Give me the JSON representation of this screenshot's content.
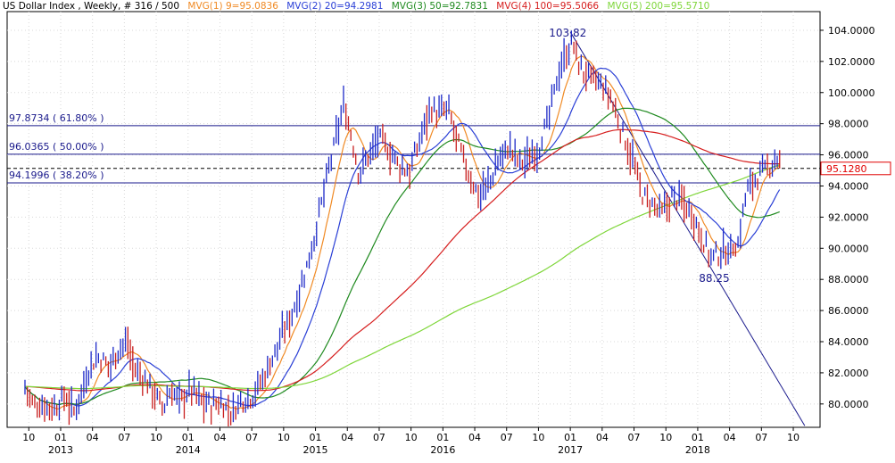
{
  "header": {
    "title": "US Dollar Index , Weekly, # 316 / 500",
    "mas": [
      {
        "label": "MVG(1) 9=95.0836",
        "color": "#f08a24"
      },
      {
        "label": "MVG(2) 20=94.2981",
        "color": "#2a3fd6"
      },
      {
        "label": "MVG(3) 50=92.7831",
        "color": "#1f8a1f"
      },
      {
        "label": "MVG(4) 100=95.5066",
        "color": "#d61e1e"
      },
      {
        "label": "MVG(5) 200=95.5710",
        "color": "#7fd63a"
      }
    ]
  },
  "chart_data": {
    "type": "line",
    "title": "US Dollar Index",
    "ylim": [
      78.5,
      105.2
    ],
    "yticks": [
      80,
      82,
      84,
      86,
      88,
      90,
      92,
      94,
      96,
      98,
      100,
      102,
      104
    ],
    "ytick_labels": [
      "80.0000",
      "82.0000",
      "84.0000",
      "86.0000",
      "88.0000",
      "90.0000",
      "92.0000",
      "94.0000",
      "96.0000",
      "98.0000",
      "100.0000",
      "102.0000",
      "104.0000"
    ],
    "x_months": [
      "10",
      "01",
      "04",
      "07",
      "10",
      "01",
      "04",
      "07",
      "10",
      "01",
      "04",
      "07",
      "10",
      "01",
      "04",
      "07",
      "10",
      "01",
      "04",
      "07",
      "10",
      "01",
      "04",
      "07",
      "10"
    ],
    "x_years": [
      "2013",
      "2014",
      "2015",
      "2016",
      "2017",
      "2018"
    ],
    "last_price": 95.128,
    "last_price_label": "95.1280",
    "fib_levels": [
      {
        "label": "97.8734 ( 61.80% )",
        "value": 97.8734
      },
      {
        "label": "96.0365 ( 50.00% )",
        "value": 96.0365
      },
      {
        "label": "94.1996 ( 38.20% )",
        "value": 94.1996
      }
    ],
    "annotations": [
      {
        "text": "103.82",
        "value": 103.82
      },
      {
        "text": "88.25",
        "value": 88.25
      }
    ],
    "price_path": [
      [
        2012.7,
        81.5
      ],
      [
        2012.78,
        80.0
      ],
      [
        2012.86,
        79.9
      ],
      [
        2012.96,
        79.8
      ],
      [
        2013.04,
        80.5
      ],
      [
        2013.1,
        79.4
      ],
      [
        2013.18,
        81.2
      ],
      [
        2013.24,
        82.6
      ],
      [
        2013.3,
        83.0
      ],
      [
        2013.38,
        82.4
      ],
      [
        2013.46,
        83.6
      ],
      [
        2013.52,
        84.0
      ],
      [
        2013.58,
        82.2
      ],
      [
        2013.64,
        81.8
      ],
      [
        2013.72,
        80.9
      ],
      [
        2013.8,
        79.7
      ],
      [
        2013.86,
        80.8
      ],
      [
        2013.94,
        80.2
      ],
      [
        2014.02,
        81.0
      ],
      [
        2014.1,
        80.2
      ],
      [
        2014.18,
        79.9
      ],
      [
        2014.26,
        80.1
      ],
      [
        2014.34,
        79.4
      ],
      [
        2014.42,
        80.3
      ],
      [
        2014.5,
        80.5
      ],
      [
        2014.58,
        81.5
      ],
      [
        2014.66,
        82.9
      ],
      [
        2014.74,
        84.4
      ],
      [
        2014.82,
        85.9
      ],
      [
        2014.9,
        87.9
      ],
      [
        2014.98,
        90.3
      ],
      [
        2015.04,
        92.6
      ],
      [
        2015.1,
        94.9
      ],
      [
        2015.18,
        97.7
      ],
      [
        2015.22,
        99.2
      ],
      [
        2015.28,
        97.3
      ],
      [
        2015.34,
        94.8
      ],
      [
        2015.42,
        96.0
      ],
      [
        2015.5,
        97.1
      ],
      [
        2015.58,
        96.2
      ],
      [
        2015.66,
        95.3
      ],
      [
        2015.74,
        94.9
      ],
      [
        2015.82,
        97.0
      ],
      [
        2015.9,
        99.1
      ],
      [
        2015.96,
        98.6
      ],
      [
        2016.04,
        98.9
      ],
      [
        2016.12,
        96.7
      ],
      [
        2016.2,
        94.8
      ],
      [
        2016.28,
        93.4
      ],
      [
        2016.36,
        94.1
      ],
      [
        2016.44,
        95.7
      ],
      [
        2016.52,
        96.5
      ],
      [
        2016.6,
        95.5
      ],
      [
        2016.68,
        95.8
      ],
      [
        2016.76,
        96.6
      ],
      [
        2016.84,
        98.6
      ],
      [
        2016.9,
        101.1
      ],
      [
        2016.98,
        102.7
      ],
      [
        2017.02,
        103.2
      ],
      [
        2017.08,
        101.5
      ],
      [
        2017.16,
        100.9
      ],
      [
        2017.24,
        100.5
      ],
      [
        2017.32,
        99.6
      ],
      [
        2017.4,
        97.6
      ],
      [
        2017.48,
        95.9
      ],
      [
        2017.56,
        93.5
      ],
      [
        2017.64,
        92.8
      ],
      [
        2017.72,
        92.2
      ],
      [
        2017.8,
        93.3
      ],
      [
        2017.88,
        93.0
      ],
      [
        2017.96,
        92.2
      ],
      [
        2018.04,
        90.6
      ],
      [
        2018.1,
        89.4
      ],
      [
        2018.16,
        89.6
      ],
      [
        2018.24,
        89.9
      ],
      [
        2018.32,
        90.3
      ],
      [
        2018.38,
        93.6
      ],
      [
        2018.46,
        94.6
      ],
      [
        2018.54,
        95.0
      ],
      [
        2018.62,
        95.9
      ],
      [
        2018.66,
        95.1
      ]
    ]
  }
}
